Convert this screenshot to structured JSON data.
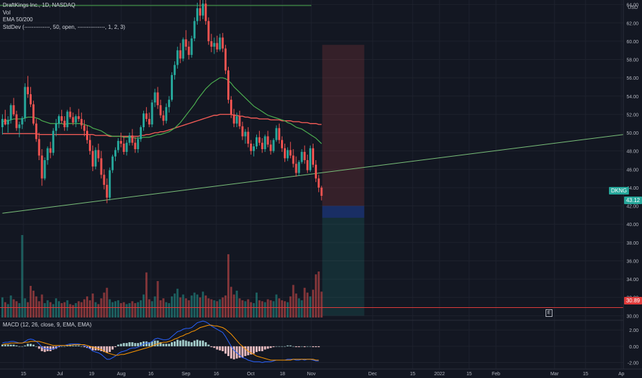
{
  "legend": {
    "title": "DraftKings Inc., 1D, NASDAQ",
    "vol": "Vol",
    "ema": "EMA 50/200",
    "stddev": "StdDev (--------------, 50, open, ---------------, 1, 2, 3)"
  },
  "macd_legend": "MACD (12, 26, close, 9, EMA, EMA)",
  "currency": "USD",
  "price_tag": {
    "symbol": "DKNG",
    "value": "43.12",
    "line_value": "30.89"
  },
  "earnings_badge": "E",
  "colors": {
    "background": "#131722",
    "up": "#26a69a",
    "down": "#ef5350",
    "ema50": "#4caf50",
    "ema200": "#f05a55",
    "trendline": "#7bc27b",
    "hline": "#e03b3b",
    "macd_line": "#2962ff",
    "signal_line": "#ff9800"
  },
  "chart_data": {
    "type": "candlestick",
    "x_ticks": [
      "15",
      "Jul",
      "19",
      "Aug",
      "16",
      "Sep",
      "16",
      "Oct",
      "18",
      "Nov",
      "Dec",
      "15",
      "2022",
      "15",
      "Feb",
      "Mar",
      "15",
      "Ap"
    ],
    "y_ticks": [
      "30.00",
      "32.00",
      "34.00",
      "36.00",
      "38.00",
      "40.00",
      "42.00",
      "44.00",
      "46.00",
      "48.00",
      "50.00",
      "52.00",
      "54.00",
      "56.00",
      "58.00",
      "60.00",
      "62.00",
      "64.00"
    ],
    "ylim": [
      29.5,
      64.5
    ],
    "macd_y_ticks": [
      "2.00",
      "0.00",
      "-2.00"
    ],
    "macd_ylim": [
      -2.8,
      3.2
    ],
    "candles": [
      [
        50.6,
        52.0,
        49.8,
        51.5
      ],
      [
        51.5,
        52.5,
        50.8,
        50.9
      ],
      [
        50.9,
        51.8,
        50.0,
        51.4
      ],
      [
        51.4,
        53.2,
        51.0,
        53.0
      ],
      [
        53.0,
        53.8,
        51.8,
        52.0
      ],
      [
        52.0,
        52.4,
        50.2,
        50.5
      ],
      [
        50.5,
        51.2,
        49.5,
        50.9
      ],
      [
        50.9,
        51.8,
        50.4,
        51.6
      ],
      [
        51.6,
        55.4,
        51.2,
        55.0
      ],
      [
        55.0,
        56.2,
        53.8,
        54.2
      ],
      [
        54.2,
        55.0,
        52.8,
        53.1
      ],
      [
        53.1,
        53.5,
        50.8,
        51.0
      ],
      [
        51.0,
        51.5,
        49.0,
        49.3
      ],
      [
        49.3,
        50.0,
        47.0,
        47.5
      ],
      [
        47.5,
        48.2,
        44.2,
        45.0
      ],
      [
        45.0,
        47.3,
        44.8,
        47.0
      ],
      [
        47.0,
        48.5,
        46.5,
        48.3
      ],
      [
        48.3,
        49.0,
        47.2,
        47.8
      ],
      [
        47.8,
        50.5,
        47.5,
        50.2
      ],
      [
        50.2,
        51.5,
        49.6,
        51.0
      ],
      [
        51.0,
        52.0,
        50.5,
        51.8
      ],
      [
        51.8,
        52.5,
        51.0,
        51.3
      ],
      [
        51.3,
        51.8,
        50.2,
        50.6
      ],
      [
        50.6,
        52.5,
        50.2,
        52.3
      ],
      [
        52.3,
        52.8,
        51.5,
        51.7
      ],
      [
        51.7,
        52.2,
        50.8,
        51.1
      ],
      [
        51.1,
        52.0,
        50.6,
        51.8
      ],
      [
        51.8,
        52.6,
        51.2,
        51.5
      ],
      [
        51.5,
        52.2,
        50.4,
        50.8
      ],
      [
        50.8,
        51.4,
        49.6,
        50.2
      ],
      [
        50.2,
        50.8,
        48.8,
        49.2
      ],
      [
        49.2,
        49.8,
        47.6,
        48.0
      ],
      [
        48.0,
        48.6,
        45.8,
        46.3
      ],
      [
        46.3,
        48.4,
        46.0,
        48.1
      ],
      [
        48.1,
        48.8,
        46.8,
        47.2
      ],
      [
        47.2,
        48.0,
        45.0,
        45.4
      ],
      [
        45.4,
        46.0,
        43.8,
        44.3
      ],
      [
        44.3,
        45.0,
        42.3,
        42.9
      ],
      [
        42.9,
        46.2,
        42.6,
        45.9
      ],
      [
        45.9,
        47.6,
        45.6,
        47.4
      ],
      [
        47.4,
        48.4,
        46.9,
        48.1
      ],
      [
        48.1,
        49.4,
        47.8,
        49.1
      ],
      [
        49.1,
        50.0,
        48.4,
        48.8
      ],
      [
        48.8,
        49.6,
        47.6,
        47.9
      ],
      [
        47.9,
        49.2,
        47.5,
        48.9
      ],
      [
        48.9,
        50.0,
        48.6,
        49.7
      ],
      [
        49.7,
        50.4,
        48.6,
        48.9
      ],
      [
        48.9,
        49.5,
        47.8,
        48.2
      ],
      [
        48.2,
        49.6,
        47.8,
        49.3
      ],
      [
        49.3,
        50.8,
        49.0,
        50.6
      ],
      [
        50.6,
        52.4,
        50.2,
        52.1
      ],
      [
        52.1,
        52.8,
        51.2,
        51.5
      ],
      [
        51.5,
        52.2,
        50.6,
        50.9
      ],
      [
        50.9,
        53.6,
        50.6,
        53.3
      ],
      [
        53.3,
        54.8,
        52.8,
        54.4
      ],
      [
        54.4,
        55.0,
        52.6,
        53.0
      ],
      [
        53.0,
        53.6,
        51.6,
        51.9
      ],
      [
        51.9,
        52.4,
        50.8,
        51.3
      ],
      [
        51.3,
        53.2,
        51.0,
        52.8
      ],
      [
        52.8,
        54.0,
        52.2,
        53.6
      ],
      [
        53.6,
        56.6,
        53.4,
        56.3
      ],
      [
        56.3,
        57.8,
        55.8,
        57.4
      ],
      [
        57.4,
        59.4,
        57.0,
        59.0
      ],
      [
        59.0,
        59.8,
        57.6,
        58.1
      ],
      [
        58.1,
        60.4,
        57.8,
        60.2
      ],
      [
        60.2,
        61.2,
        59.0,
        59.4
      ],
      [
        59.4,
        60.0,
        58.0,
        58.5
      ],
      [
        58.5,
        60.6,
        58.2,
        60.3
      ],
      [
        60.3,
        62.6,
        60.0,
        62.2
      ],
      [
        62.2,
        64.2,
        61.8,
        63.6
      ],
      [
        63.6,
        64.8,
        62.2,
        62.8
      ],
      [
        62.8,
        64.6,
        62.4,
        64.1
      ],
      [
        64.1,
        64.6,
        61.8,
        62.2
      ],
      [
        62.2,
        62.6,
        59.6,
        60.0
      ],
      [
        60.0,
        60.8,
        58.8,
        59.4
      ],
      [
        59.4,
        60.4,
        58.6,
        59.8
      ],
      [
        59.8,
        60.6,
        58.8,
        59.1
      ],
      [
        59.1,
        60.8,
        58.9,
        60.4
      ],
      [
        60.4,
        60.9,
        58.8,
        59.2
      ],
      [
        59.2,
        59.6,
        56.4,
        56.8
      ],
      [
        56.8,
        57.2,
        53.2,
        53.6
      ],
      [
        53.6,
        54.0,
        51.6,
        52.0
      ],
      [
        52.0,
        52.6,
        50.6,
        51.0
      ],
      [
        51.0,
        52.2,
        50.6,
        51.8
      ],
      [
        51.8,
        52.4,
        50.4,
        50.7
      ],
      [
        50.7,
        51.2,
        49.2,
        49.6
      ],
      [
        49.6,
        50.4,
        48.8,
        50.1
      ],
      [
        50.1,
        50.6,
        48.4,
        48.8
      ],
      [
        48.8,
        49.2,
        47.6,
        48.0
      ],
      [
        48.0,
        48.8,
        47.4,
        48.5
      ],
      [
        48.5,
        49.8,
        48.2,
        49.5
      ],
      [
        49.5,
        50.2,
        48.6,
        48.9
      ],
      [
        48.9,
        49.4,
        47.8,
        48.2
      ],
      [
        48.2,
        49.8,
        47.9,
        49.6
      ],
      [
        49.6,
        50.2,
        48.4,
        48.7
      ],
      [
        48.7,
        49.2,
        47.6,
        48.0
      ],
      [
        48.0,
        49.4,
        47.8,
        49.2
      ],
      [
        49.2,
        50.8,
        49.0,
        50.5
      ],
      [
        50.5,
        51.0,
        48.8,
        49.2
      ],
      [
        49.2,
        49.6,
        47.9,
        48.3
      ],
      [
        48.3,
        48.8,
        46.8,
        47.2
      ],
      [
        47.2,
        48.4,
        46.9,
        48.1
      ],
      [
        48.1,
        49.0,
        47.2,
        47.5
      ],
      [
        47.5,
        48.2,
        46.2,
        46.6
      ],
      [
        46.6,
        47.4,
        45.2,
        45.6
      ],
      [
        45.6,
        47.0,
        45.3,
        46.8
      ],
      [
        46.8,
        48.2,
        46.6,
        47.9
      ],
      [
        47.9,
        48.6,
        46.6,
        47.0
      ],
      [
        47.0,
        47.6,
        45.6,
        45.9
      ],
      [
        45.9,
        48.6,
        45.7,
        48.3
      ],
      [
        48.3,
        48.8,
        46.2,
        46.5
      ],
      [
        46.5,
        47.0,
        44.6,
        45.0
      ],
      [
        45.0,
        45.4,
        43.5,
        44.0
      ],
      [
        44.0,
        44.2,
        42.6,
        43.1
      ]
    ],
    "volume": [
      2.1,
      1.6,
      1.4,
      2.3,
      1.9,
      1.7,
      1.5,
      8.6,
      2.0,
      1.6,
      3.3,
      2.8,
      2.2,
      1.7,
      2.4,
      1.5,
      1.8,
      1.6,
      1.4,
      2.0,
      1.7,
      1.5,
      1.6,
      1.8,
      1.4,
      1.3,
      1.5,
      1.7,
      1.6,
      1.9,
      2.2,
      1.8,
      2.5,
      1.6,
      1.4,
      2.0,
      2.6,
      3.1,
      1.9,
      1.6,
      1.7,
      1.8,
      1.5,
      1.6,
      1.4,
      1.5,
      1.7,
      1.5,
      1.6,
      1.8,
      2.4,
      4.7,
      1.9,
      1.7,
      2.2,
      3.8,
      1.8,
      2.0,
      1.6,
      1.5,
      2.2,
      2.5,
      3.0,
      2.1,
      2.4,
      2.0,
      1.8,
      2.3,
      2.6,
      2.4,
      2.1,
      2.7,
      2.3,
      2.0,
      1.9,
      1.8,
      1.7,
      1.9,
      2.1,
      2.3,
      6.6,
      3.2,
      2.4,
      2.8,
      2.0,
      1.8,
      1.7,
      1.9,
      1.6,
      1.5,
      2.6,
      1.8,
      1.7,
      1.6,
      1.9,
      1.8,
      1.7,
      2.4,
      2.0,
      1.8,
      1.7,
      1.6,
      2.2,
      3.4,
      2.5,
      2.0,
      1.8,
      3.1,
      2.6,
      2.2,
      2.9,
      4.5,
      4.8,
      2.7
    ],
    "ema50": [
      51.2,
      51.3,
      51.3,
      51.4,
      51.5,
      51.5,
      51.5,
      51.5,
      51.6,
      51.7,
      51.7,
      51.7,
      51.6,
      51.5,
      51.3,
      51.2,
      51.1,
      51.0,
      51.0,
      51.0,
      51.0,
      51.0,
      50.9,
      51.0,
      51.0,
      51.0,
      51.0,
      51.0,
      51.0,
      50.9,
      50.8,
      50.7,
      50.5,
      50.4,
      50.3,
      50.2,
      50.0,
      49.8,
      49.7,
      49.6,
      49.6,
      49.6,
      49.6,
      49.5,
      49.5,
      49.5,
      49.5,
      49.4,
      49.4,
      49.4,
      49.5,
      49.5,
      49.5,
      49.6,
      49.7,
      49.8,
      49.8,
      49.9,
      50.0,
      50.1,
      50.3,
      50.5,
      50.8,
      51.1,
      51.5,
      51.9,
      52.3,
      52.7,
      53.1,
      53.6,
      54.0,
      54.4,
      54.8,
      55.1,
      55.4,
      55.6,
      55.8,
      56.0,
      56.0,
      55.9,
      55.7,
      55.4,
      55.0,
      54.7,
      54.4,
      54.1,
      53.8,
      53.5,
      53.2,
      52.9,
      52.7,
      52.5,
      52.3,
      52.1,
      51.9,
      51.8,
      51.7,
      51.6,
      51.5,
      51.4,
      51.3,
      51.1,
      51.0,
      50.8,
      50.6,
      50.5,
      50.4,
      50.2,
      50.0,
      49.8,
      49.6,
      49.4,
      49.1,
      48.8
    ],
    "ema200": [
      49.9,
      49.9,
      49.9,
      49.9,
      49.9,
      49.9,
      49.9,
      49.9,
      49.9,
      49.9,
      49.9,
      49.9,
      49.9,
      49.8,
      49.8,
      49.8,
      49.8,
      49.8,
      49.8,
      49.8,
      49.8,
      49.8,
      49.8,
      49.8,
      49.8,
      49.8,
      49.8,
      49.8,
      49.8,
      49.8,
      49.8,
      49.8,
      49.8,
      49.7,
      49.7,
      49.7,
      49.7,
      49.7,
      49.6,
      49.6,
      49.6,
      49.6,
      49.6,
      49.6,
      49.6,
      49.6,
      49.6,
      49.6,
      49.6,
      49.7,
      49.7,
      49.8,
      49.8,
      49.9,
      50.0,
      50.0,
      50.1,
      50.1,
      50.2,
      50.3,
      50.4,
      50.5,
      50.6,
      50.7,
      50.8,
      50.9,
      51.0,
      51.1,
      51.2,
      51.3,
      51.4,
      51.5,
      51.6,
      51.7,
      51.8,
      51.9,
      51.9,
      52.0,
      52.0,
      52.0,
      52.0,
      52.0,
      51.9,
      51.9,
      51.8,
      51.8,
      51.7,
      51.7,
      51.6,
      51.6,
      51.6,
      51.5,
      51.5,
      51.5,
      51.5,
      51.4,
      51.4,
      51.4,
      51.4,
      51.3,
      51.3,
      51.3,
      51.3,
      51.2,
      51.2,
      51.2,
      51.1,
      51.1,
      51.1,
      51.0,
      51.0,
      51.0,
      50.9,
      50.9
    ],
    "macd": [
      0.4,
      0.5,
      0.5,
      0.6,
      0.6,
      0.5,
      0.4,
      0.4,
      0.6,
      0.8,
      0.9,
      0.8,
      0.6,
      0.3,
      -0.1,
      -0.3,
      -0.3,
      -0.4,
      -0.3,
      -0.2,
      0.0,
      0.1,
      0.1,
      0.2,
      0.3,
      0.3,
      0.3,
      0.3,
      0.2,
      0.1,
      -0.1,
      -0.3,
      -0.6,
      -0.7,
      -0.8,
      -1.0,
      -1.3,
      -1.6,
      -1.6,
      -1.4,
      -1.2,
      -0.9,
      -0.7,
      -0.6,
      -0.5,
      -0.3,
      -0.2,
      -0.2,
      -0.1,
      0.1,
      0.3,
      0.4,
      0.4,
      0.6,
      0.9,
      1.0,
      0.9,
      0.8,
      0.8,
      0.9,
      1.2,
      1.5,
      1.8,
      1.9,
      2.1,
      2.2,
      2.2,
      2.3,
      2.6,
      2.9,
      3.0,
      3.1,
      3.0,
      2.8,
      2.5,
      2.3,
      2.1,
      1.9,
      1.7,
      1.2,
      0.6,
      0.0,
      -0.5,
      -0.8,
      -1.1,
      -1.4,
      -1.5,
      -1.7,
      -1.8,
      -1.9,
      -1.9,
      -1.9,
      -2.0,
      -1.9,
      -1.9,
      -1.9,
      -1.8,
      -1.7,
      -1.7,
      -1.7,
      -1.7,
      -1.6,
      -1.6,
      -1.6,
      -1.7,
      -1.7,
      -1.6,
      -1.7,
      -1.6,
      -1.6,
      -1.7,
      -1.8,
      -1.8
    ],
    "signal": [
      0.2,
      0.3,
      0.3,
      0.4,
      0.4,
      0.4,
      0.4,
      0.4,
      0.5,
      0.5,
      0.6,
      0.6,
      0.6,
      0.6,
      0.5,
      0.4,
      0.3,
      0.2,
      0.1,
      0.1,
      0.1,
      0.1,
      0.1,
      0.1,
      0.1,
      0.2,
      0.2,
      0.2,
      0.2,
      0.2,
      0.1,
      0.0,
      -0.1,
      -0.2,
      -0.3,
      -0.4,
      -0.6,
      -0.8,
      -0.9,
      -1.0,
      -1.1,
      -1.1,
      -1.0,
      -1.0,
      -0.9,
      -0.8,
      -0.7,
      -0.6,
      -0.5,
      -0.4,
      -0.3,
      -0.2,
      -0.1,
      0.0,
      0.2,
      0.3,
      0.4,
      0.5,
      0.5,
      0.6,
      0.7,
      0.9,
      1.0,
      1.2,
      1.3,
      1.5,
      1.6,
      1.8,
      1.9,
      2.1,
      2.3,
      2.4,
      2.5,
      2.6,
      2.6,
      2.5,
      2.5,
      2.4,
      2.3,
      2.1,
      1.8,
      1.5,
      1.1,
      0.7,
      0.3,
      0.0,
      -0.3,
      -0.6,
      -0.8,
      -1.0,
      -1.2,
      -1.3,
      -1.4,
      -1.5,
      -1.6,
      -1.7,
      -1.7,
      -1.7,
      -1.7,
      -1.7,
      -1.7,
      -1.7,
      -1.7,
      -1.6,
      -1.6,
      -1.6,
      -1.6,
      -1.6,
      -1.6,
      -1.6,
      -1.6,
      -1.7,
      -1.7
    ],
    "trendline": {
      "start": [
        0,
        41.2
      ],
      "end": [
        182,
        49.8
      ]
    },
    "resistance_line": 63.9,
    "horizontal_line": 30.89,
    "position_box": {
      "entry": 42.0,
      "stop": 59.6,
      "target": 30.0,
      "mid": 40.7
    }
  }
}
